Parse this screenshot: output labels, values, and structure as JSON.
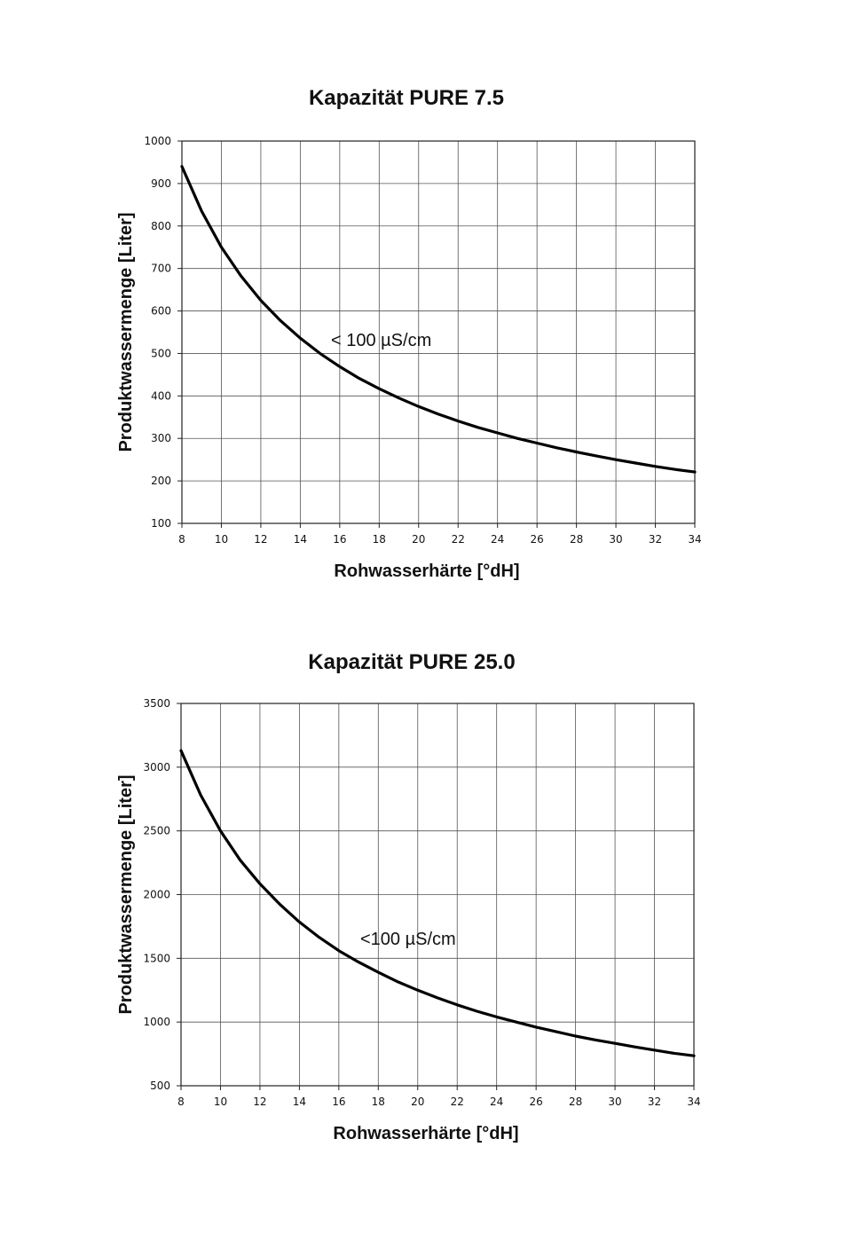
{
  "chart_data": [
    {
      "type": "line",
      "title": "Kapazität PURE 7.5",
      "xlabel": "Rohwasserhärte [°dH]",
      "ylabel": "Produktwassermenge [Liter]",
      "xlim": [
        8,
        34
      ],
      "ylim": [
        100,
        1000
      ],
      "xticks": [
        8,
        10,
        12,
        14,
        16,
        18,
        20,
        22,
        24,
        26,
        28,
        30,
        32,
        34
      ],
      "yticks": [
        100,
        200,
        300,
        400,
        500,
        600,
        700,
        800,
        900,
        1000
      ],
      "grid": true,
      "annotation": "< 100 µS/cm",
      "series": [
        {
          "x": [
            8,
            9,
            10,
            11,
            12,
            13,
            14,
            15,
            16,
            17,
            18,
            19,
            20,
            21,
            22,
            23,
            24,
            25,
            26,
            27,
            28,
            29,
            30,
            31,
            32,
            33,
            34
          ],
          "values": [
            940,
            835,
            750,
            682,
            625,
            577,
            536,
            500,
            469,
            441,
            417,
            395,
            375,
            357,
            341,
            326,
            313,
            300,
            289,
            278,
            268,
            259,
            250,
            242,
            234,
            227,
            221
          ]
        }
      ]
    },
    {
      "type": "line",
      "title": "Kapazität PURE 25.0",
      "xlabel": "Rohwasserhärte [°dH]",
      "ylabel": "Produktwassermenge [Liter]",
      "xlim": [
        8,
        34
      ],
      "ylim": [
        500,
        3500
      ],
      "xticks": [
        8,
        10,
        12,
        14,
        16,
        18,
        20,
        22,
        24,
        26,
        28,
        30,
        32,
        34
      ],
      "yticks": [
        500,
        1000,
        1500,
        2000,
        2500,
        3000,
        3500
      ],
      "grid": true,
      "annotation": "<100 µS/cm",
      "series": [
        {
          "x": [
            8,
            9,
            10,
            11,
            12,
            13,
            14,
            15,
            16,
            17,
            18,
            19,
            20,
            21,
            22,
            23,
            24,
            25,
            26,
            27,
            28,
            29,
            30,
            31,
            32,
            33,
            34
          ],
          "values": [
            3130,
            2780,
            2500,
            2270,
            2085,
            1925,
            1785,
            1665,
            1560,
            1470,
            1390,
            1315,
            1250,
            1190,
            1135,
            1085,
            1040,
            1000,
            960,
            925,
            890,
            860,
            833,
            805,
            780,
            755,
            735
          ]
        }
      ]
    }
  ]
}
